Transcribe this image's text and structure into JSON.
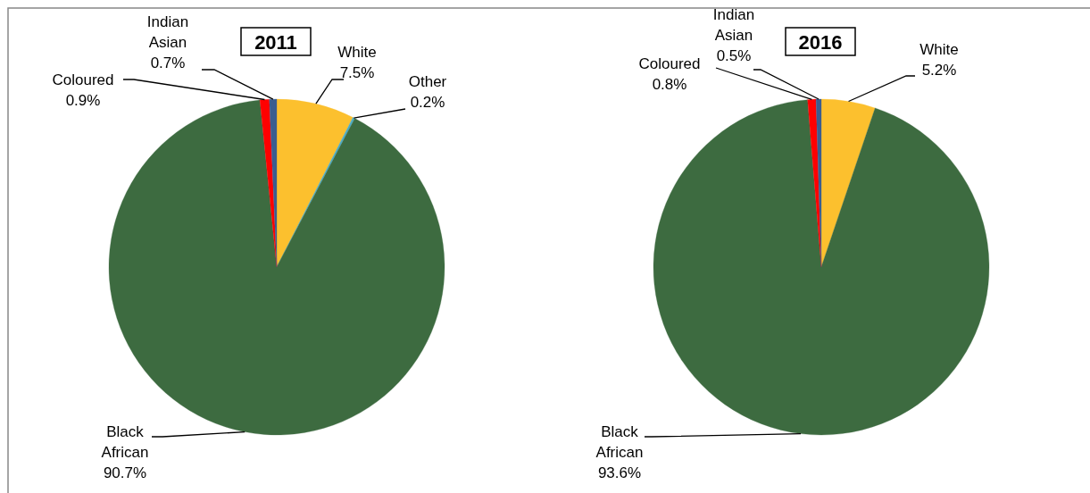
{
  "chart_data": [
    {
      "type": "pie",
      "title": "2011",
      "categories": [
        "White",
        "Other",
        "Black African",
        "Coloured",
        "Indian Asian"
      ],
      "values": [
        7.5,
        0.2,
        90.7,
        0.9,
        0.7
      ],
      "value_labels": [
        "7.5%",
        "0.2%",
        "90.7%",
        "0.9%",
        "0.7%"
      ],
      "colors": [
        "#fcc02e",
        "#4bacc6",
        "#3d6b40",
        "#ff0000",
        "#3b5d8f"
      ]
    },
    {
      "type": "pie",
      "title": "2016",
      "categories": [
        "White",
        "Black African",
        "Coloured",
        "Indian Asian"
      ],
      "values": [
        5.2,
        93.6,
        0.8,
        0.5
      ],
      "value_labels": [
        "5.2%",
        "93.6%",
        "0.8%",
        "0.5%"
      ],
      "colors": [
        "#fcc02e",
        "#3d6b40",
        "#ff0000",
        "#3b5d8f"
      ]
    }
  ]
}
